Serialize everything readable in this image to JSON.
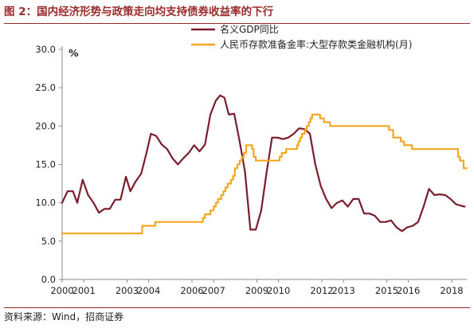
{
  "title": "图 2：国内经济形势与政策走向均支持债券收益率的下行",
  "source": "资料来源：Wind，招商证券",
  "chart_data": {
    "type": "line",
    "ylabel": "%",
    "ylim": [
      0,
      30
    ],
    "yticks": [
      "0.0",
      "5.0",
      "10.0",
      "15.0",
      "20.0",
      "25.0",
      "30.0"
    ],
    "xlim": [
      2000,
      2018.7
    ],
    "xticks": [
      "2000",
      "2001",
      "2003",
      "2004",
      "2006",
      "2007",
      "2009",
      "2010",
      "2012",
      "2013",
      "2015",
      "2016",
      "2018"
    ],
    "grid": false,
    "legend": "top-right",
    "series": [
      {
        "name": "名义GDP同比",
        "color": "#7a1e2e",
        "step": false,
        "points": [
          [
            2000.0,
            10.0
          ],
          [
            2000.25,
            11.5
          ],
          [
            2000.5,
            11.5
          ],
          [
            2000.7,
            10.0
          ],
          [
            2000.95,
            13.0
          ],
          [
            2001.2,
            11.0
          ],
          [
            2001.45,
            10.0
          ],
          [
            2001.7,
            8.7
          ],
          [
            2001.95,
            9.2
          ],
          [
            2002.2,
            9.2
          ],
          [
            2002.45,
            10.4
          ],
          [
            2002.7,
            10.4
          ],
          [
            2002.95,
            13.4
          ],
          [
            2003.15,
            11.5
          ],
          [
            2003.4,
            12.8
          ],
          [
            2003.65,
            13.8
          ],
          [
            2003.9,
            16.5
          ],
          [
            2004.1,
            19.0
          ],
          [
            2004.35,
            18.7
          ],
          [
            2004.6,
            17.6
          ],
          [
            2004.85,
            17.0
          ],
          [
            2005.1,
            15.8
          ],
          [
            2005.35,
            15.0
          ],
          [
            2005.6,
            15.8
          ],
          [
            2005.85,
            16.5
          ],
          [
            2006.1,
            17.5
          ],
          [
            2006.35,
            16.7
          ],
          [
            2006.6,
            17.6
          ],
          [
            2006.85,
            21.5
          ],
          [
            2007.1,
            23.3
          ],
          [
            2007.3,
            24.0
          ],
          [
            2007.5,
            23.7
          ],
          [
            2007.7,
            21.5
          ],
          [
            2007.95,
            21.6
          ],
          [
            2008.2,
            18.0
          ],
          [
            2008.45,
            14.0
          ],
          [
            2008.7,
            6.5
          ],
          [
            2008.95,
            6.5
          ],
          [
            2009.2,
            9.0
          ],
          [
            2009.45,
            14.0
          ],
          [
            2009.7,
            18.5
          ],
          [
            2009.95,
            18.5
          ],
          [
            2010.2,
            18.3
          ],
          [
            2010.45,
            18.5
          ],
          [
            2010.7,
            19.0
          ],
          [
            2010.95,
            19.7
          ],
          [
            2011.2,
            19.6
          ],
          [
            2011.45,
            19.0
          ],
          [
            2011.7,
            15.0
          ],
          [
            2011.95,
            12.2
          ],
          [
            2012.2,
            10.5
          ],
          [
            2012.45,
            9.3
          ],
          [
            2012.7,
            10.0
          ],
          [
            2012.95,
            10.3
          ],
          [
            2013.2,
            9.5
          ],
          [
            2013.45,
            10.5
          ],
          [
            2013.7,
            10.5
          ],
          [
            2013.95,
            8.6
          ],
          [
            2014.2,
            8.6
          ],
          [
            2014.45,
            8.3
          ],
          [
            2014.7,
            7.5
          ],
          [
            2014.95,
            7.5
          ],
          [
            2015.2,
            7.7
          ],
          [
            2015.45,
            6.8
          ],
          [
            2015.7,
            6.3
          ],
          [
            2015.95,
            6.8
          ],
          [
            2016.2,
            7.0
          ],
          [
            2016.45,
            7.5
          ],
          [
            2016.7,
            9.5
          ],
          [
            2016.95,
            11.8
          ],
          [
            2017.2,
            11.0
          ],
          [
            2017.45,
            11.1
          ],
          [
            2017.7,
            11.0
          ],
          [
            2017.95,
            10.5
          ],
          [
            2018.2,
            9.8
          ],
          [
            2018.45,
            9.6
          ],
          [
            2018.6,
            9.5
          ]
        ]
      },
      {
        "name": "人民币存款准备金率:大型存款类金融机构(月)",
        "color": "#f5a623",
        "step": true,
        "points": [
          [
            2000.0,
            6.0
          ],
          [
            2003.7,
            7.0
          ],
          [
            2004.3,
            7.5
          ],
          [
            2006.5,
            8.0
          ],
          [
            2006.6,
            8.5
          ],
          [
            2006.85,
            9.0
          ],
          [
            2007.0,
            9.5
          ],
          [
            2007.1,
            10.0
          ],
          [
            2007.2,
            10.5
          ],
          [
            2007.35,
            11.0
          ],
          [
            2007.45,
            11.5
          ],
          [
            2007.55,
            12.0
          ],
          [
            2007.65,
            12.5
          ],
          [
            2007.8,
            13.0
          ],
          [
            2007.9,
            13.5
          ],
          [
            2007.98,
            14.5
          ],
          [
            2008.1,
            15.0
          ],
          [
            2008.2,
            15.5
          ],
          [
            2008.3,
            16.0
          ],
          [
            2008.4,
            16.5
          ],
          [
            2008.5,
            17.5
          ],
          [
            2008.78,
            17.0
          ],
          [
            2008.85,
            16.0
          ],
          [
            2008.95,
            15.5
          ],
          [
            2010.05,
            16.0
          ],
          [
            2010.15,
            16.5
          ],
          [
            2010.35,
            17.0
          ],
          [
            2010.85,
            17.5
          ],
          [
            2010.92,
            18.0
          ],
          [
            2011.0,
            18.5
          ],
          [
            2011.08,
            19.0
          ],
          [
            2011.2,
            19.5
          ],
          [
            2011.3,
            20.0
          ],
          [
            2011.4,
            20.5
          ],
          [
            2011.47,
            21.0
          ],
          [
            2011.55,
            21.5
          ],
          [
            2011.92,
            21.0
          ],
          [
            2012.1,
            20.5
          ],
          [
            2012.38,
            20.0
          ],
          [
            2015.1,
            19.5
          ],
          [
            2015.3,
            18.5
          ],
          [
            2015.65,
            18.0
          ],
          [
            2015.8,
            17.5
          ],
          [
            2016.17,
            17.0
          ],
          [
            2018.3,
            16.0
          ],
          [
            2018.38,
            15.5
          ],
          [
            2018.55,
            14.5
          ],
          [
            2018.7,
            14.5
          ]
        ]
      }
    ]
  }
}
